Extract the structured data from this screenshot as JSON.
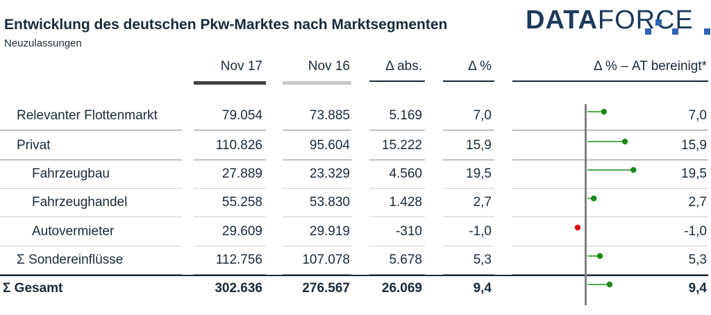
{
  "header": {
    "title": "Entwicklung des deutschen Pkw-Marktes nach Marktsegmenten",
    "subtitle": "Neuzulassungen",
    "logo_part1": "DATA",
    "logo_part2": "FORCE"
  },
  "columns": {
    "nov17": "Nov 17",
    "nov16": "Nov 16",
    "abs": "Δ abs.",
    "pct": "Δ %",
    "adj": "Δ % – AT bereinigt*"
  },
  "colors": {
    "text": "#1a2a3a",
    "nov17_bar": "#404040",
    "nov16_bar": "#c8c8c8",
    "positive": "#1a8a1a",
    "negative": "#e00000"
  },
  "rows": [
    {
      "label": "Relevanter Flottenmarkt",
      "nov17": "79.054",
      "nov16": "73.885",
      "abs": "5.169",
      "pct": "7,0",
      "adj_label": "7,0",
      "adj_value": 7.0
    },
    {
      "label": "Privat",
      "nov17": "110.826",
      "nov16": "95.604",
      "abs": "15.222",
      "pct": "15,9",
      "adj_label": "15,9",
      "adj_value": 15.9
    },
    {
      "label": "Fahrzeugbau",
      "nov17": "27.889",
      "nov16": "23.329",
      "abs": "4.560",
      "pct": "19,5",
      "adj_label": "19,5",
      "adj_value": 19.5
    },
    {
      "label": "Fahrzeughandel",
      "nov17": "55.258",
      "nov16": "53.830",
      "abs": "1.428",
      "pct": "2,7",
      "adj_label": "2,7",
      "adj_value": 2.7
    },
    {
      "label": "Autovermieter",
      "nov17": "29.609",
      "nov16": "29.919",
      "abs": "-310",
      "pct": "-1,0",
      "adj_label": "-1,0",
      "adj_value": -1.0
    },
    {
      "label": "Σ Sondereinflüsse",
      "nov17": "112.756",
      "nov16": "107.078",
      "abs": "5.678",
      "pct": "5,3",
      "adj_label": "5,3",
      "adj_value": 5.3
    },
    {
      "label": "Σ Gesamt",
      "nov17": "302.636",
      "nov16": "276.567",
      "abs": "26.069",
      "pct": "9,4",
      "adj_label": "9,4",
      "adj_value": 9.4
    }
  ]
}
